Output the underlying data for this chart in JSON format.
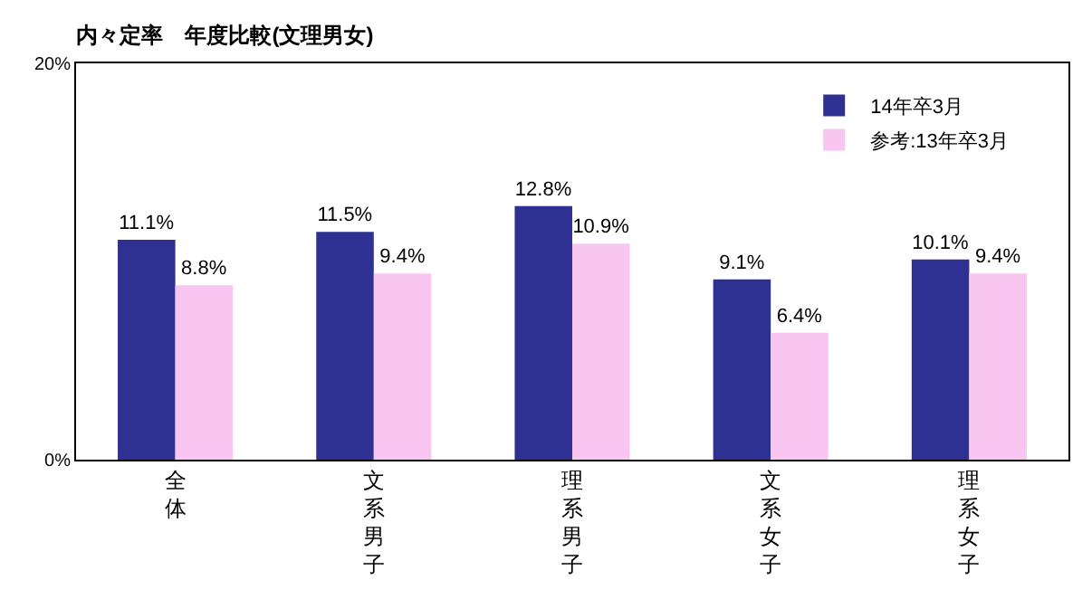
{
  "chart_data": {
    "type": "bar",
    "title": "内々定率　年度比較(文理男女)",
    "categories": [
      "全体",
      "文系男子",
      "理系男子",
      "文系女子",
      "理系女子"
    ],
    "series": [
      {
        "name": "14年卒3月",
        "color": "#2e3192",
        "values": [
          11.1,
          11.5,
          12.8,
          9.1,
          10.1
        ],
        "value_labels": [
          "11.1%",
          "11.5%",
          "12.8%",
          "9.1%",
          "10.1%"
        ]
      },
      {
        "name": "参考:13年卒3月",
        "color": "#f9c6f2",
        "values": [
          8.8,
          9.4,
          10.9,
          6.4,
          9.4
        ],
        "value_labels": [
          "8.8%",
          "9.4%",
          "10.9%",
          "6.4%",
          "9.4%"
        ]
      }
    ],
    "ylim": [
      0,
      20
    ],
    "yticks": [
      {
        "value": 0,
        "label": "0%"
      },
      {
        "value": 20,
        "label": "20%"
      }
    ],
    "legend": "top right"
  }
}
